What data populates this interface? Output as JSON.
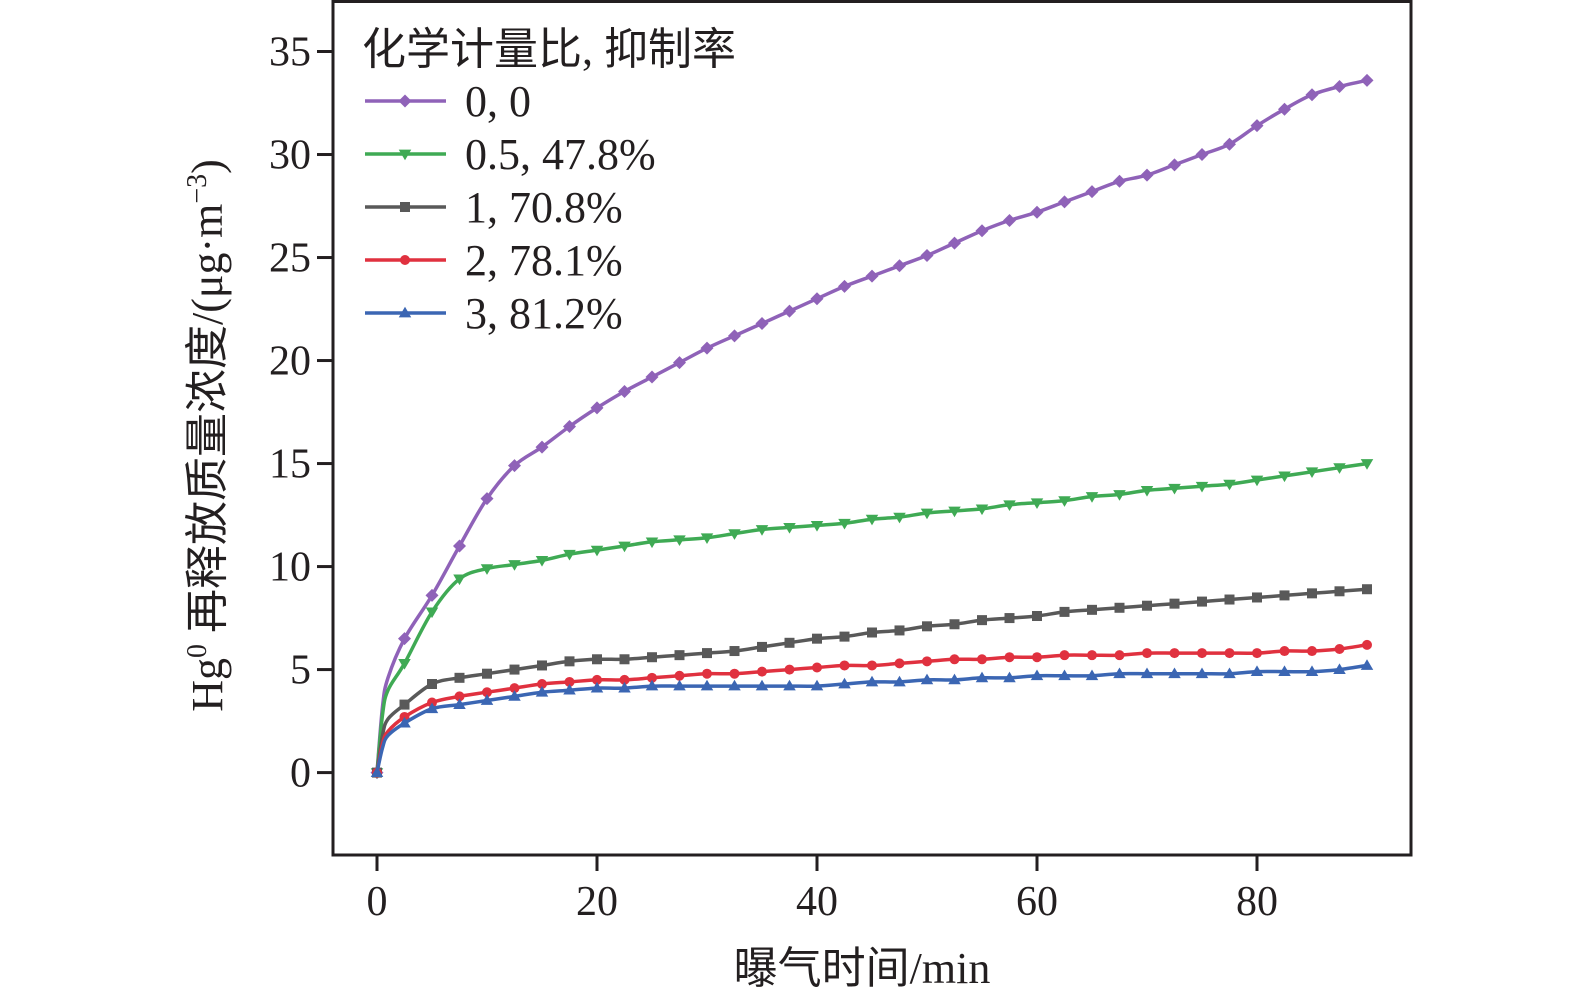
{
  "chart_data": {
    "type": "line",
    "title": "",
    "xlabel": "曝气时间/min",
    "ylabel": {
      "prefix": "Hg",
      "sup": "0",
      "main": " 再释放质量浓度/(μg·m",
      "unit_sup": "−3",
      "suffix": ")"
    },
    "xlim": [
      -4,
      94
    ],
    "ylim": [
      -4,
      37.5
    ],
    "xticks": [
      0,
      20,
      40,
      60,
      80
    ],
    "yticks": [
      0,
      5,
      10,
      15,
      20,
      25,
      30,
      35
    ],
    "grid": false,
    "legend": {
      "title": "化学计量比, 抑制率",
      "placement": "top-left"
    },
    "x": [
      0,
      0.5,
      1,
      2.5,
      5,
      7.5,
      10,
      12.5,
      15,
      17.5,
      20,
      22.5,
      25,
      27.5,
      30,
      32.5,
      35,
      37.5,
      40,
      42.5,
      45,
      47.5,
      50,
      52.5,
      55,
      57.5,
      60,
      62.5,
      65,
      67.5,
      70,
      72.5,
      75,
      77.5,
      80,
      82.5,
      85,
      87.5,
      90
    ],
    "series": [
      {
        "name": "0, 0",
        "color": "#8f62b8",
        "marker": "diamond",
        "values": [
          0,
          3.2,
          4.6,
          6.5,
          8.6,
          11.0,
          13.3,
          14.9,
          15.8,
          16.8,
          17.7,
          18.5,
          19.2,
          19.9,
          20.6,
          21.2,
          21.8,
          22.4,
          23.0,
          23.6,
          24.1,
          24.6,
          25.1,
          25.7,
          26.3,
          26.8,
          27.2,
          27.7,
          28.2,
          28.7,
          29.0,
          29.5,
          30.0,
          30.5,
          31.4,
          32.2,
          32.9,
          33.3,
          33.6
        ]
      },
      {
        "name": "0.5, 47.8%",
        "color": "#3faa54",
        "marker": "triangle-down",
        "values": [
          0,
          2.8,
          4.0,
          5.3,
          7.8,
          9.4,
          9.9,
          10.1,
          10.3,
          10.6,
          10.8,
          11.0,
          11.2,
          11.3,
          11.4,
          11.6,
          11.8,
          11.9,
          12.0,
          12.1,
          12.3,
          12.4,
          12.6,
          12.7,
          12.8,
          13.0,
          13.1,
          13.2,
          13.4,
          13.5,
          13.7,
          13.8,
          13.9,
          14.0,
          14.2,
          14.4,
          14.6,
          14.8,
          15.0
        ]
      },
      {
        "name": "1, 70.8%",
        "color": "#595959",
        "marker": "square",
        "values": [
          0,
          1.8,
          2.6,
          3.3,
          4.3,
          4.6,
          4.8,
          5.0,
          5.2,
          5.4,
          5.5,
          5.5,
          5.6,
          5.7,
          5.8,
          5.9,
          6.1,
          6.3,
          6.5,
          6.6,
          6.8,
          6.9,
          7.1,
          7.2,
          7.4,
          7.5,
          7.6,
          7.8,
          7.9,
          8.0,
          8.1,
          8.2,
          8.3,
          8.4,
          8.5,
          8.6,
          8.7,
          8.8,
          8.9
        ]
      },
      {
        "name": "2, 78.1%",
        "color": "#e0313f",
        "marker": "circle",
        "values": [
          0,
          1.4,
          2.0,
          2.7,
          3.4,
          3.7,
          3.9,
          4.1,
          4.3,
          4.4,
          4.5,
          4.5,
          4.6,
          4.7,
          4.8,
          4.8,
          4.9,
          5.0,
          5.1,
          5.2,
          5.2,
          5.3,
          5.4,
          5.5,
          5.5,
          5.6,
          5.6,
          5.7,
          5.7,
          5.7,
          5.8,
          5.8,
          5.8,
          5.8,
          5.8,
          5.9,
          5.9,
          6.0,
          6.2
        ]
      },
      {
        "name": "3, 81.2%",
        "color": "#3b66b3",
        "marker": "triangle-up",
        "values": [
          0,
          1.2,
          1.8,
          2.4,
          3.1,
          3.3,
          3.5,
          3.7,
          3.9,
          4.0,
          4.1,
          4.1,
          4.2,
          4.2,
          4.2,
          4.2,
          4.2,
          4.2,
          4.2,
          4.3,
          4.4,
          4.4,
          4.5,
          4.5,
          4.6,
          4.6,
          4.7,
          4.7,
          4.7,
          4.8,
          4.8,
          4.8,
          4.8,
          4.8,
          4.9,
          4.9,
          4.9,
          5.0,
          5.2
        ]
      }
    ]
  }
}
